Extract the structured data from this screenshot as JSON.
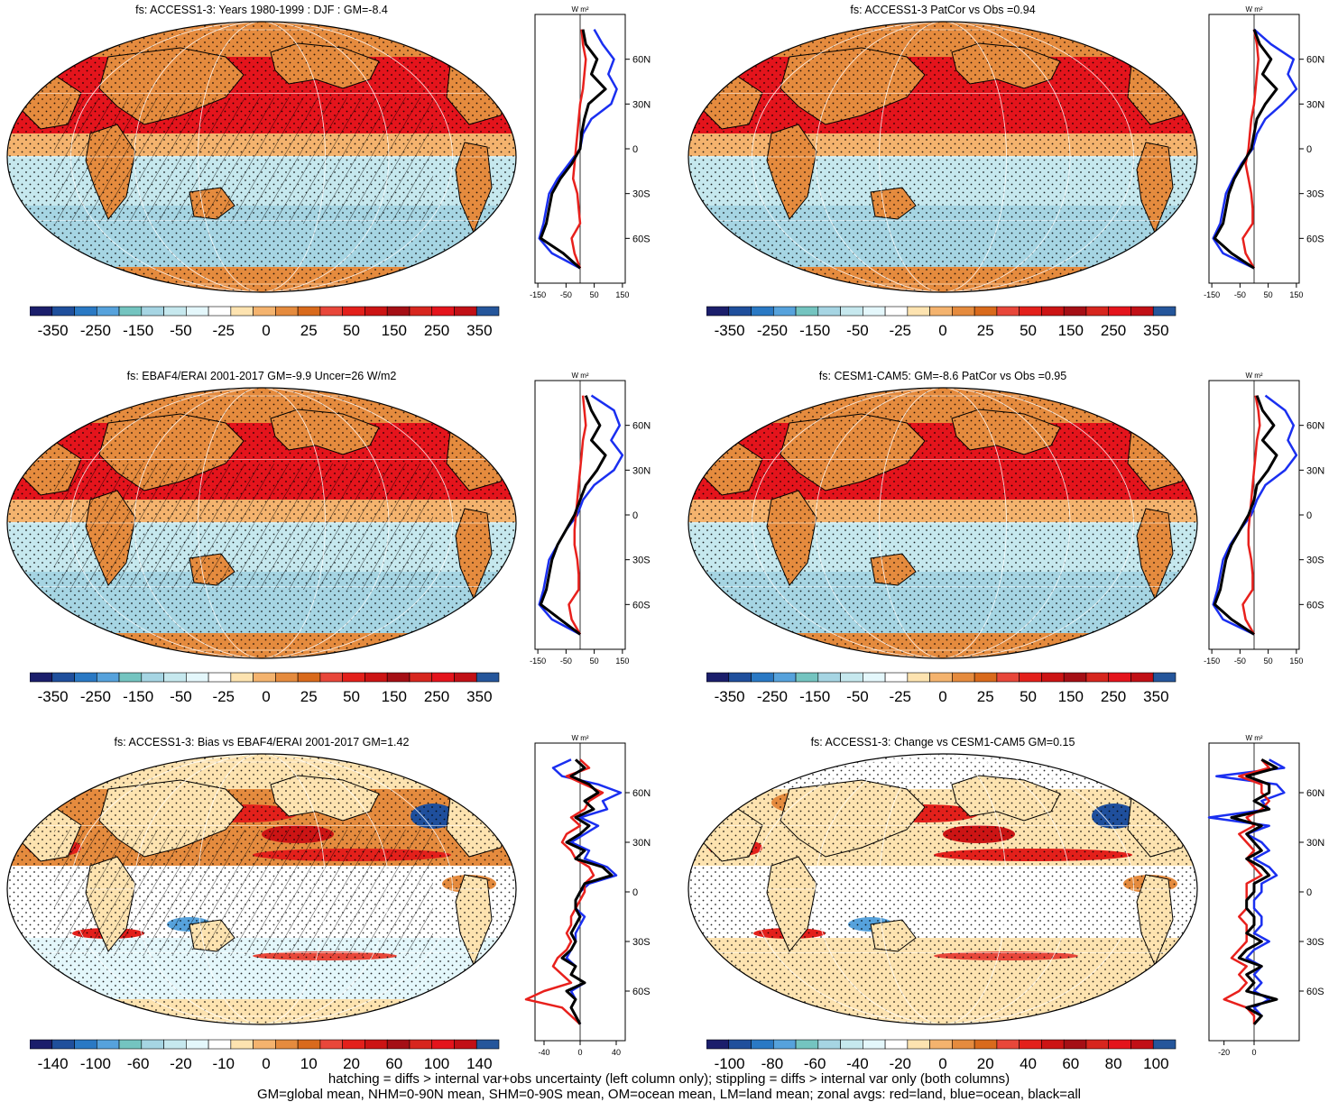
{
  "panels": [
    {
      "id": "p1",
      "title": "fs: ACCESS1-3: Years 1980-1999 : DJF : GM=-8.4",
      "colorbar_labels": [
        "-350",
        "-250",
        "-150",
        "-50",
        "-25",
        "0",
        "25",
        "50",
        "150",
        "250",
        "350"
      ],
      "zonal_unit": "W m²",
      "zonal_ticks_x": [
        "-150",
        "-50",
        "50",
        "150"
      ],
      "zonal_ticks_y": [
        "60N",
        "30N",
        "0",
        "30S",
        "60S"
      ]
    },
    {
      "id": "p2",
      "title": "fs: ACCESS1-3 PatCor vs Obs =0.94",
      "colorbar_labels": [
        "-350",
        "-250",
        "-150",
        "-50",
        "-25",
        "0",
        "25",
        "50",
        "150",
        "250",
        "350"
      ],
      "zonal_unit": "W m²",
      "zonal_ticks_x": [
        "-150",
        "-50",
        "50",
        "150"
      ],
      "zonal_ticks_y": [
        "60N",
        "30N",
        "0",
        "30S",
        "60S"
      ]
    },
    {
      "id": "p3",
      "title": "fs: EBAF4/ERAI 2001-2017 GM=-9.9 Uncer=26 W/m2",
      "colorbar_labels": [
        "-350",
        "-250",
        "-150",
        "-50",
        "-25",
        "0",
        "25",
        "50",
        "150",
        "250",
        "350"
      ],
      "zonal_unit": "W m²",
      "zonal_ticks_x": [
        "-150",
        "-50",
        "50",
        "150"
      ],
      "zonal_ticks_y": [
        "60N",
        "30N",
        "0",
        "30S",
        "60S"
      ]
    },
    {
      "id": "p4",
      "title": "fs: CESM1-CAM5: GM=-8.6 PatCor vs Obs =0.95",
      "colorbar_labels": [
        "-350",
        "-250",
        "-150",
        "-50",
        "-25",
        "0",
        "25",
        "50",
        "150",
        "250",
        "350"
      ],
      "zonal_unit": "W m²",
      "zonal_ticks_x": [
        "-150",
        "-50",
        "50",
        "150"
      ],
      "zonal_ticks_y": [
        "60N",
        "30N",
        "0",
        "30S",
        "60S"
      ]
    },
    {
      "id": "p5",
      "title": "fs: ACCESS1-3: Bias vs EBAF4/ERAI 2001-2017 GM=1.42",
      "colorbar_labels": [
        "-140",
        "-100",
        "-60",
        "-20",
        "-10",
        "0",
        "10",
        "20",
        "60",
        "100",
        "140"
      ],
      "zonal_unit": "W m²",
      "zonal_ticks_x": [
        "-40",
        "0",
        "40"
      ],
      "zonal_ticks_y": [
        "60N",
        "30N",
        "0",
        "30S",
        "60S"
      ]
    },
    {
      "id": "p6",
      "title": "fs: ACCESS1-3: Change vs CESM1-CAM5 GM=0.15",
      "colorbar_labels": [
        "-100",
        "-80",
        "-60",
        "-40",
        "-20",
        "0",
        "20",
        "40",
        "60",
        "80",
        "100"
      ],
      "zonal_unit": "W m²",
      "zonal_ticks_x": [
        "-20",
        "0"
      ],
      "zonal_ticks_y": [
        "60N",
        "30N",
        "0",
        "30S",
        "60S"
      ]
    }
  ],
  "colors": {
    "scale": [
      "#1b1e6b",
      "#1f4f9c",
      "#2a79c4",
      "#56a2dc",
      "#74c4c0",
      "#a6d5e3",
      "#c6e8ee",
      "#e4f7fb",
      "#ffffff",
      "#fde3b0",
      "#f4b36e",
      "#e58b3e",
      "#d96a1c",
      "#e8473a",
      "#e3201b",
      "#cc1414",
      "#a50f15",
      "#d7261e",
      "#e4141c",
      "#c11016",
      "#25569b"
    ],
    "land_line": "#000000",
    "zonal_land": "#e8201c",
    "zonal_ocean": "#1a2ff0",
    "zonal_all": "#000000"
  },
  "chart_data": [
    {
      "type": "heatmap",
      "title": "fs: ACCESS1-3: Years 1980-1999 : DJF : GM=-8.4",
      "projection": "robinson",
      "colorbar_ticks": [
        -350,
        -250,
        -150,
        -50,
        -25,
        0,
        25,
        50,
        150,
        250,
        350
      ],
      "zonal": {
        "lat": [
          80,
          70,
          60,
          50,
          40,
          30,
          20,
          10,
          0,
          -10,
          -20,
          -30,
          -40,
          -50,
          -60,
          -70,
          -80
        ],
        "all": [
          10,
          20,
          60,
          40,
          90,
          30,
          15,
          5,
          0,
          -30,
          -70,
          -100,
          -110,
          -120,
          -140,
          -60,
          0
        ],
        "land": [
          5,
          10,
          20,
          15,
          10,
          0,
          -5,
          -10,
          -15,
          -20,
          -25,
          -10,
          -5,
          0,
          -30,
          -20,
          0
        ],
        "ocean": [
          50,
          80,
          120,
          100,
          130,
          110,
          40,
          10,
          0,
          -40,
          -80,
          -110,
          -120,
          -130,
          -145,
          -100,
          0
        ]
      }
    },
    {
      "type": "heatmap",
      "title": "fs: ACCESS1-3 PatCor vs Obs =0.94",
      "projection": "robinson",
      "colorbar_ticks": [
        -350,
        -250,
        -150,
        -50,
        -25,
        0,
        25,
        50,
        150,
        250,
        350
      ],
      "zonal": {
        "lat": [
          80,
          70,
          60,
          50,
          40,
          30,
          20,
          10,
          0,
          -10,
          -20,
          -30,
          -40,
          -50,
          -60,
          -70,
          -80
        ],
        "all": [
          0,
          20,
          60,
          30,
          80,
          40,
          10,
          0,
          -10,
          -40,
          -70,
          -90,
          -100,
          -110,
          -140,
          -80,
          0
        ],
        "land": [
          0,
          10,
          15,
          10,
          5,
          0,
          -10,
          -15,
          -20,
          -30,
          -20,
          -10,
          -5,
          -5,
          -40,
          -30,
          0
        ],
        "ocean": [
          0,
          60,
          140,
          120,
          150,
          100,
          40,
          10,
          -5,
          -45,
          -75,
          -100,
          -110,
          -120,
          -145,
          -110,
          0
        ]
      }
    },
    {
      "type": "heatmap",
      "title": "fs: EBAF4/ERAI 2001-2017 GM=-9.9 Uncer=26 W/m2",
      "projection": "robinson",
      "colorbar_ticks": [
        -350,
        -250,
        -150,
        -50,
        -25,
        0,
        25,
        50,
        150,
        250,
        350
      ],
      "zonal": {
        "lat": [
          80,
          70,
          60,
          50,
          40,
          30,
          20,
          10,
          0,
          -10,
          -20,
          -30,
          -40,
          -50,
          -60,
          -70,
          -80
        ],
        "all": [
          20,
          40,
          70,
          40,
          90,
          60,
          20,
          0,
          -20,
          -50,
          -80,
          -100,
          -110,
          -120,
          -140,
          -70,
          0
        ],
        "land": [
          10,
          15,
          20,
          10,
          5,
          0,
          -5,
          -10,
          -15,
          -20,
          -20,
          -10,
          -5,
          -5,
          -40,
          -30,
          0
        ],
        "ocean": [
          40,
          120,
          140,
          110,
          150,
          120,
          50,
          10,
          -10,
          -50,
          -80,
          -110,
          -120,
          -130,
          -145,
          -100,
          0
        ]
      }
    },
    {
      "type": "heatmap",
      "title": "fs: CESM1-CAM5: GM=-8.6 PatCor vs Obs =0.95",
      "projection": "robinson",
      "colorbar_ticks": [
        -350,
        -250,
        -150,
        -50,
        -25,
        0,
        25,
        50,
        150,
        250,
        350
      ],
      "zonal": {
        "lat": [
          80,
          70,
          60,
          50,
          40,
          30,
          20,
          10,
          0,
          -10,
          -20,
          -30,
          -40,
          -50,
          -60,
          -70,
          -80
        ],
        "all": [
          10,
          30,
          70,
          30,
          80,
          50,
          10,
          0,
          -20,
          -50,
          -80,
          -100,
          -110,
          -120,
          -140,
          -80,
          0
        ],
        "land": [
          5,
          15,
          20,
          10,
          5,
          0,
          -5,
          -10,
          -15,
          -20,
          -20,
          -10,
          -5,
          -5,
          -40,
          -30,
          0
        ],
        "ocean": [
          40,
          110,
          140,
          120,
          150,
          110,
          40,
          10,
          -10,
          -50,
          -85,
          -110,
          -120,
          -130,
          -145,
          -110,
          0
        ]
      }
    },
    {
      "type": "heatmap",
      "title": "fs: ACCESS1-3: Bias vs EBAF4/ERAI 2001-2017 GM=1.42",
      "projection": "robinson",
      "colorbar_ticks": [
        -140,
        -100,
        -60,
        -20,
        -10,
        0,
        10,
        20,
        60,
        100,
        140
      ],
      "zonal": {
        "lat": [
          80,
          75,
          70,
          65,
          60,
          55,
          50,
          45,
          40,
          35,
          30,
          25,
          20,
          15,
          10,
          5,
          0,
          -5,
          -10,
          -15,
          -20,
          -25,
          -30,
          -35,
          -40,
          -45,
          -50,
          -55,
          -60,
          -65,
          -70,
          -75,
          -80
        ],
        "all": [
          -5,
          5,
          -10,
          10,
          20,
          5,
          15,
          -5,
          10,
          0,
          -15,
          5,
          -5,
          25,
          35,
          5,
          0,
          -5,
          -5,
          0,
          -5,
          -10,
          -5,
          -10,
          -20,
          -5,
          -10,
          5,
          -15,
          -5,
          -10,
          -5,
          0
        ],
        "land": [
          0,
          10,
          -15,
          5,
          25,
          10,
          5,
          -10,
          0,
          -15,
          -20,
          -10,
          -5,
          10,
          15,
          5,
          5,
          0,
          -5,
          -10,
          -10,
          -15,
          -10,
          -15,
          -25,
          -30,
          -20,
          -10,
          -40,
          -60,
          -20,
          -10,
          0
        ],
        "ocean": [
          -10,
          -30,
          -20,
          20,
          45,
          25,
          30,
          0,
          20,
          5,
          -10,
          10,
          5,
          30,
          40,
          10,
          0,
          -5,
          -5,
          5,
          0,
          -5,
          -5,
          -10,
          -15,
          -5,
          -10,
          5,
          -10,
          -5,
          -10,
          -5,
          0
        ]
      }
    },
    {
      "type": "heatmap",
      "title": "fs: ACCESS1-3: Change vs CESM1-CAM5 GM=0.15",
      "projection": "robinson",
      "colorbar_ticks": [
        -100,
        -80,
        -60,
        -40,
        -20,
        0,
        20,
        40,
        60,
        80,
        100
      ],
      "zonal": {
        "lat": [
          80,
          75,
          70,
          65,
          60,
          55,
          50,
          45,
          40,
          35,
          30,
          25,
          20,
          15,
          10,
          5,
          0,
          -5,
          -10,
          -15,
          -20,
          -25,
          -30,
          -35,
          -40,
          -45,
          -50,
          -55,
          -60,
          -65,
          -70,
          -75,
          -80
        ],
        "all": [
          5,
          15,
          -5,
          10,
          10,
          0,
          10,
          -15,
          5,
          -5,
          0,
          5,
          -5,
          5,
          10,
          0,
          0,
          -5,
          -5,
          0,
          0,
          -5,
          5,
          -5,
          -10,
          5,
          -5,
          0,
          -5,
          15,
          -5,
          5,
          0
        ],
        "land": [
          5,
          10,
          -10,
          5,
          5,
          10,
          5,
          -5,
          0,
          -10,
          -5,
          0,
          -5,
          0,
          5,
          -5,
          -5,
          -5,
          -5,
          -10,
          -5,
          -5,
          -5,
          -10,
          -15,
          -5,
          -10,
          -5,
          -10,
          -20,
          -5,
          0,
          0
        ],
        "ocean": [
          10,
          20,
          -25,
          15,
          20,
          5,
          10,
          -30,
          10,
          -5,
          5,
          10,
          0,
          10,
          15,
          5,
          5,
          0,
          0,
          5,
          5,
          0,
          10,
          0,
          -5,
          5,
          0,
          5,
          0,
          10,
          0,
          5,
          0
        ]
      }
    }
  ],
  "footer": {
    "line1": "hatching = diffs > internal var+obs uncertainty (left column only); stippling = diffs > internal var only (both columns)",
    "line2": "GM=global mean, NHM=0-90N mean, SHM=0-90S mean, OM=ocean mean, LM=land mean; zonal avgs: red=land, blue=ocean, black=all"
  }
}
